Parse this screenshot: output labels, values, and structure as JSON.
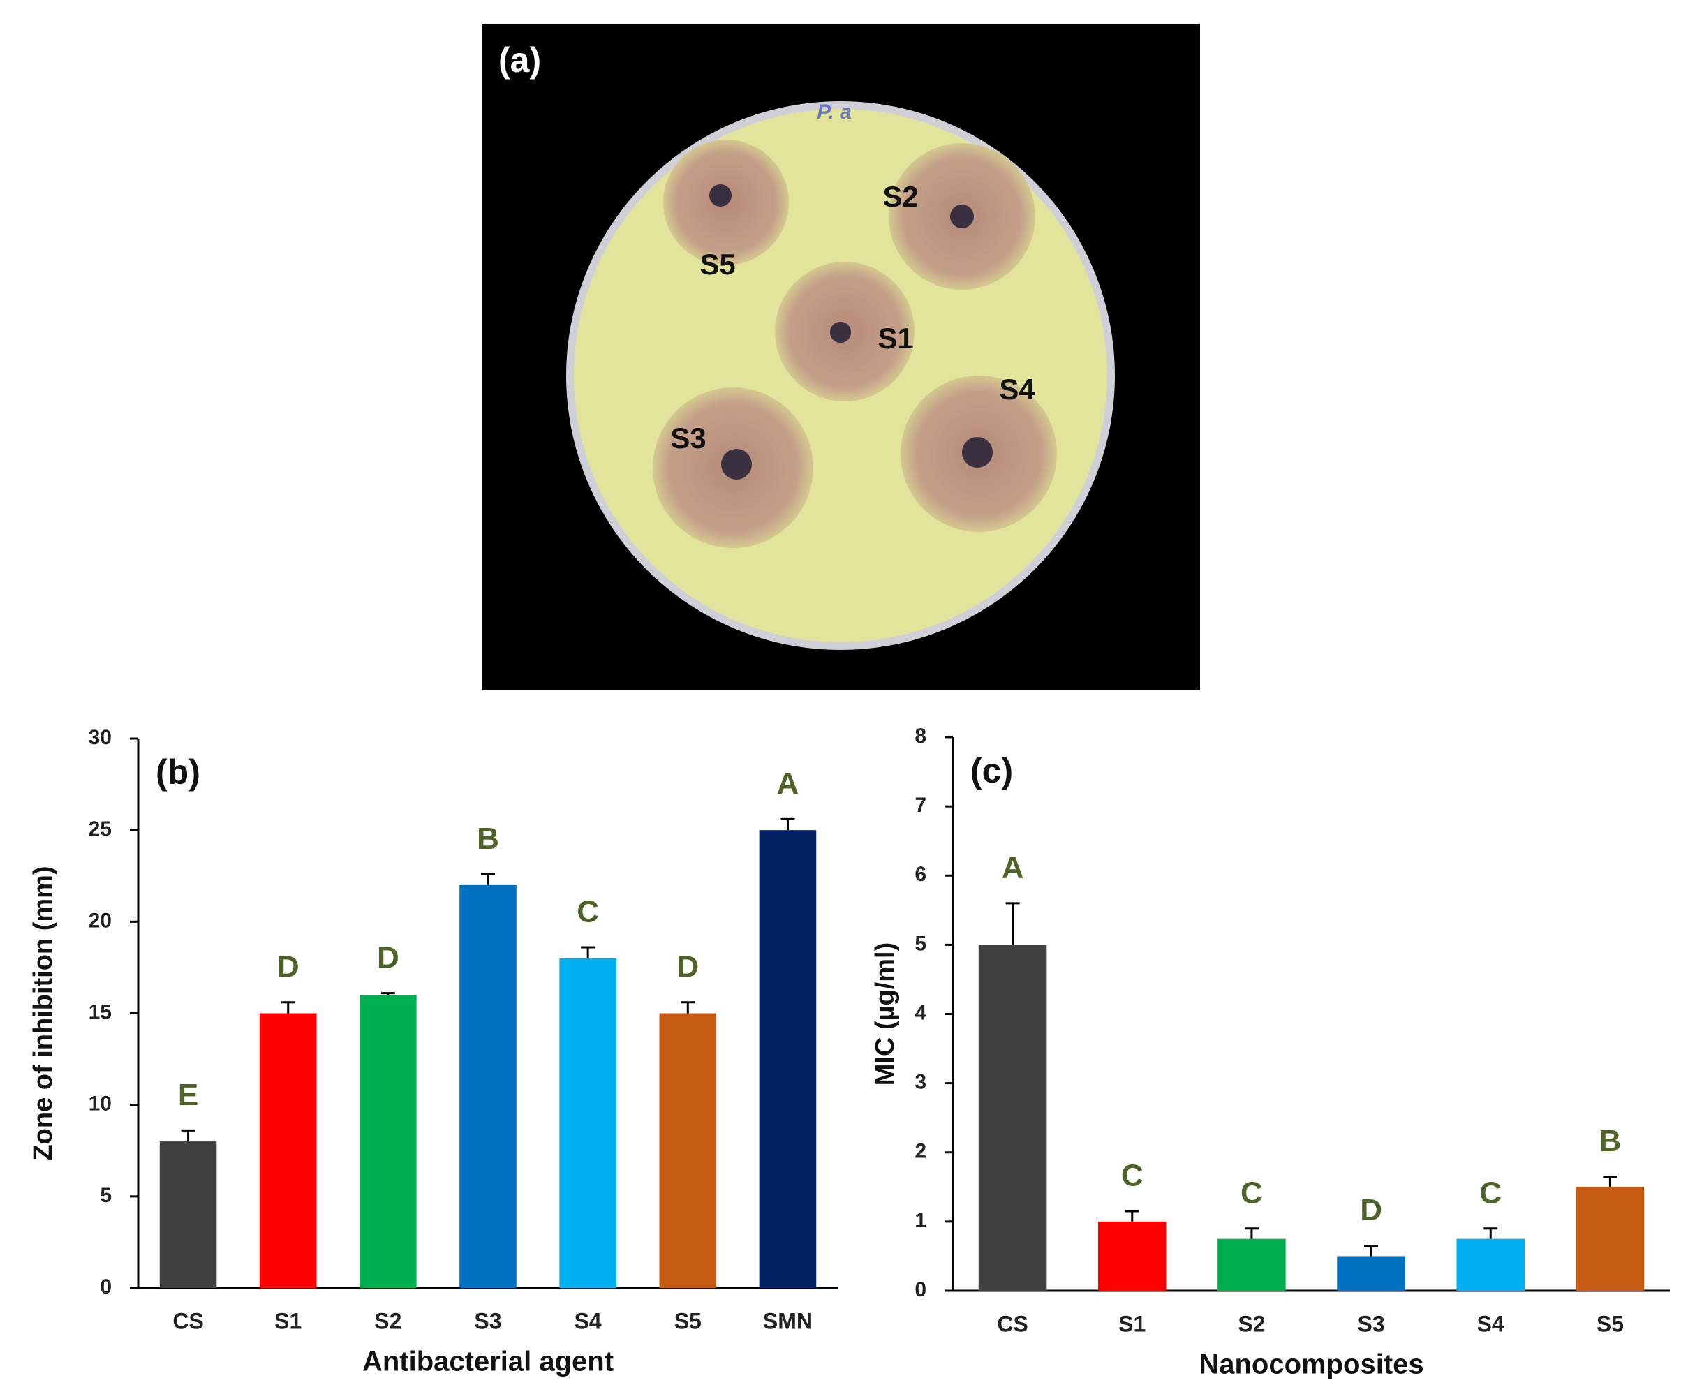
{
  "photo": {
    "panel_label": "(a)",
    "plate_note": "P. a",
    "disc_labels": [
      "S1",
      "S2",
      "S3",
      "S4",
      "S5"
    ]
  },
  "chart_data": [
    {
      "type": "bar",
      "panel_label": "(b)",
      "y_label": "Zone of inhibition (mm)",
      "x_label": "Antibacterial agent",
      "categories": [
        "CS",
        "S1",
        "S2",
        "S3",
        "S4",
        "S5",
        "SMN"
      ],
      "values": [
        8,
        15,
        16,
        22,
        18,
        15,
        25
      ],
      "errors": [
        0.6,
        0.6,
        0.1,
        0.6,
        0.6,
        0.6,
        0.6
      ],
      "annotations": [
        "E",
        "D",
        "D",
        "B",
        "C",
        "D",
        "A"
      ],
      "colors": [
        "#404040",
        "#ff0000",
        "#00b050",
        "#0070c0",
        "#00b0f0",
        "#c55a11",
        "#002060"
      ],
      "ylim": [
        0,
        30
      ],
      "yticks": [
        0,
        5,
        10,
        15,
        20,
        25,
        30
      ]
    },
    {
      "type": "bar",
      "panel_label": "(c)",
      "y_label": "MIC (µg/ml)",
      "x_label": "Nanocomposites",
      "categories": [
        "CS",
        "S1",
        "S2",
        "S3",
        "S4",
        "S5"
      ],
      "values": [
        5,
        1,
        0.75,
        0.5,
        0.75,
        1.5
      ],
      "errors": [
        0.6,
        0.15,
        0.15,
        0.15,
        0.15,
        0.15
      ],
      "annotations": [
        "A",
        "C",
        "C",
        "D",
        "C",
        "B"
      ],
      "colors": [
        "#404040",
        "#ff0000",
        "#00b050",
        "#0070c0",
        "#00b0f0",
        "#c55a11"
      ],
      "ylim": [
        0,
        8
      ],
      "yticks": [
        0,
        1,
        2,
        3,
        4,
        5,
        6,
        7,
        8
      ]
    }
  ]
}
